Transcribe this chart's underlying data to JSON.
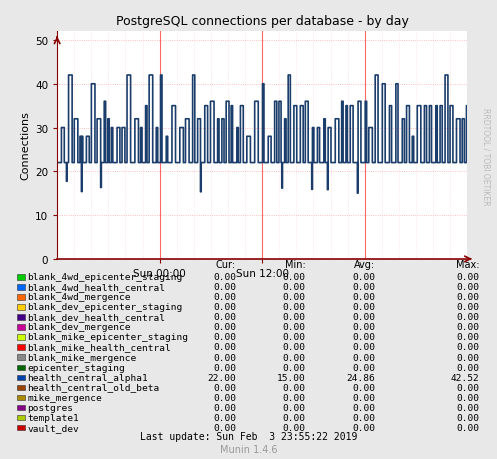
{
  "title": "PostgreSQL connections per database - by day",
  "ylabel": "Connections",
  "background_color": "#e8e8e8",
  "plot_bg_color": "#ffffff",
  "grid_color_h": "#ffaaaa",
  "grid_color_v": "#ffcccc",
  "ylim": [
    0,
    52
  ],
  "yticks": [
    0,
    10,
    20,
    30,
    40,
    50
  ],
  "xtick_labels": [
    "Sun 00:00",
    "Sun 12:00"
  ],
  "right_label": "RRDTOOL / TOBI OETIKER",
  "footer_left": "Munin 1.4.6",
  "footer_right": "Last update: Sun Feb  3 23:55:22 2019",
  "col_headers": [
    "Cur:",
    "Min:",
    "Avg:",
    "Max:"
  ],
  "legend_entries": [
    {
      "label": "blank_4wd_epicenter_staging",
      "color": "#00cc00",
      "cur": "0.00",
      "min": "0.00",
      "avg": "0.00",
      "max": "0.00"
    },
    {
      "label": "blank_4wd_health_central",
      "color": "#0066ff",
      "cur": "0.00",
      "min": "0.00",
      "avg": "0.00",
      "max": "0.00"
    },
    {
      "label": "blank_4wd_mergence",
      "color": "#ff6600",
      "cur": "0.00",
      "min": "0.00",
      "avg": "0.00",
      "max": "0.00"
    },
    {
      "label": "blank_dev_epicenter_staging",
      "color": "#ffcc00",
      "cur": "0.00",
      "min": "0.00",
      "avg": "0.00",
      "max": "0.00"
    },
    {
      "label": "blank_dev_health_central",
      "color": "#440088",
      "cur": "0.00",
      "min": "0.00",
      "avg": "0.00",
      "max": "0.00"
    },
    {
      "label": "blank_dev_mergence",
      "color": "#cc0099",
      "cur": "0.00",
      "min": "0.00",
      "avg": "0.00",
      "max": "0.00"
    },
    {
      "label": "blank_mike_epicenter_staging",
      "color": "#ccff00",
      "cur": "0.00",
      "min": "0.00",
      "avg": "0.00",
      "max": "0.00"
    },
    {
      "label": "blank_mike_health_central",
      "color": "#ff0000",
      "cur": "0.00",
      "min": "0.00",
      "avg": "0.00",
      "max": "0.00"
    },
    {
      "label": "blank_mike_mergence",
      "color": "#888888",
      "cur": "0.00",
      "min": "0.00",
      "avg": "0.00",
      "max": "0.00"
    },
    {
      "label": "epicenter_staging",
      "color": "#006600",
      "cur": "0.00",
      "min": "0.00",
      "avg": "0.00",
      "max": "0.00"
    },
    {
      "label": "health_central_alpha1",
      "color": "#0044aa",
      "cur": "22.00",
      "min": "15.00",
      "avg": "24.86",
      "max": "42.52"
    },
    {
      "label": "health_central_old_beta",
      "color": "#994400",
      "cur": "0.00",
      "min": "0.00",
      "avg": "0.00",
      "max": "0.00"
    },
    {
      "label": "mike_mergence",
      "color": "#aa8800",
      "cur": "0.00",
      "min": "0.00",
      "avg": "0.00",
      "max": "0.00"
    },
    {
      "label": "postgres",
      "color": "#880088",
      "cur": "0.00",
      "min": "0.00",
      "avg": "0.00",
      "max": "0.00"
    },
    {
      "label": "template1",
      "color": "#aacc00",
      "cur": "0.00",
      "min": "0.00",
      "avg": "0.00",
      "max": "0.00"
    },
    {
      "label": "vault_dev",
      "color": "#cc0000",
      "cur": "0.00",
      "min": "0.00",
      "avg": "0.00",
      "max": "0.00"
    }
  ],
  "line_color": "#1a3d6b",
  "line_width": 1.2,
  "axis_color": "#880000",
  "vline_x": [
    0.25,
    0.5,
    0.75
  ],
  "vline_color": "#ff6666"
}
